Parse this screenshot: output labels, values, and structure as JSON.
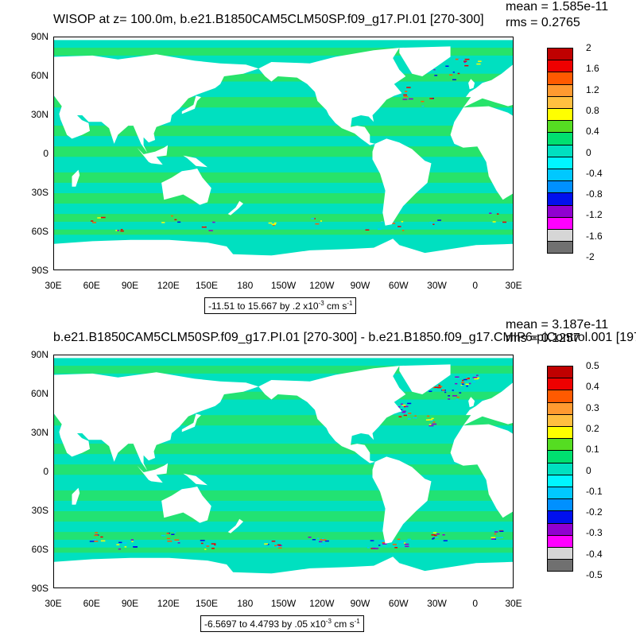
{
  "panels": [
    {
      "title": "WISOP at z= 100.0m, b.e21.B1850CAM5CLM50SP.f09_g17.PI.01 [270-300]",
      "mean": "mean = 1.585e-11",
      "rms": "rms = 0.2765",
      "range_text": "-11.51 to 15.667 by .2 x10",
      "range_exp": "-3",
      "range_units": " cm s",
      "range_units_exp": "-1",
      "colorbar_labels": [
        "2",
        "1.6",
        "1.2",
        "0.8",
        "0.4",
        "0",
        "-0.4",
        "-0.8",
        "-1.2",
        "-1.6",
        "-2"
      ]
    },
    {
      "title": "b.e21.B1850CAM5CLM50SP.f09_g17.PI.01 [270-300] - b.e21.B1850.f09_g17.CMIP6-piControl.001 [197",
      "mean": "mean = 3.187e-11",
      "rms": "rms = 0.1257",
      "range_text": "-6.5697 to 4.4793 by .05 x10",
      "range_exp": "-3",
      "range_units": " cm s",
      "range_units_exp": "-1",
      "colorbar_labels": [
        "0.5",
        "0.4",
        "0.3",
        "0.2",
        "0.1",
        "0",
        "-0.1",
        "-0.2",
        "-0.3",
        "-0.4",
        "-0.5"
      ]
    }
  ],
  "lat_labels": [
    "90N",
    "60N",
    "30N",
    "0",
    "30S",
    "60S",
    "90S"
  ],
  "lon_labels": [
    "30E",
    "60E",
    "90E",
    "120E",
    "150E",
    "180",
    "150W",
    "120W",
    "90W",
    "60W",
    "30W",
    "0",
    "30E"
  ],
  "colorbar_colors": [
    "#c00000",
    "#ee0000",
    "#ff5a00",
    "#ff9a30",
    "#ffbf40",
    "#ffff00",
    "#55dd22",
    "#00e070",
    "#00e0c0",
    "#00f5ff",
    "#00c8ff",
    "#0090ff",
    "#0010ee",
    "#9000d0",
    "#ff00ff",
    "#d6d6d6",
    "#707070"
  ],
  "colors": {
    "ocean_main": "#00e0c0",
    "ocean_band": "#2ee35a",
    "land": "#ffffff"
  }
}
